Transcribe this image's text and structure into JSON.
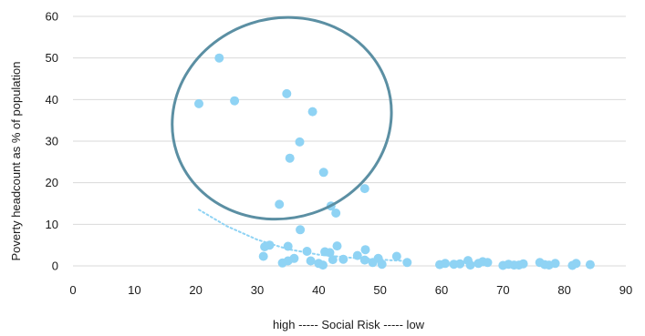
{
  "chart_data": {
    "type": "scatter",
    "title": "",
    "xlabel": "high ----- Social Risk ----- low",
    "ylabel": "Poverty headcount as % of population",
    "xlim": [
      0,
      90
    ],
    "ylim": [
      0,
      60
    ],
    "x_ticks": [
      "0",
      "10",
      "20",
      "30",
      "40",
      "50",
      "60",
      "70",
      "80",
      "90"
    ],
    "y_ticks": [
      "0",
      "10",
      "20",
      "30",
      "40",
      "50",
      "60"
    ],
    "grid": "horizontal",
    "legend": "none",
    "colors": {
      "points": "#8fd3f4",
      "ellipse": "#5b8fa3",
      "trendline": "#8fd3f4",
      "gridline": "#d9d9d9"
    },
    "trendline": {
      "style": "dotted",
      "points": [
        [
          20.5,
          13.5
        ],
        [
          25,
          9.6
        ],
        [
          30,
          6.3
        ],
        [
          35,
          4.0
        ],
        [
          40,
          2.7
        ],
        [
          45,
          2.0
        ],
        [
          50,
          1.5
        ],
        [
          55,
          1.1
        ]
      ]
    },
    "highlight": {
      "shape": "ellipse",
      "center": [
        34,
        35.5
      ],
      "rx": 18,
      "ry": 24,
      "rotation": -18
    },
    "points": [
      [
        23.8,
        50
      ],
      [
        20.5,
        39
      ],
      [
        26.3,
        39.7
      ],
      [
        34.8,
        41.4
      ],
      [
        39.0,
        37.1
      ],
      [
        36.9,
        29.8
      ],
      [
        35.3,
        25.9
      ],
      [
        40.8,
        22.5
      ],
      [
        47.5,
        18.6
      ],
      [
        33.6,
        14.8
      ],
      [
        42.0,
        14.4
      ],
      [
        42.8,
        12.7
      ],
      [
        37.0,
        8.7
      ],
      [
        32.0,
        5.0
      ],
      [
        31.2,
        4.6
      ],
      [
        35.0,
        4.7
      ],
      [
        31.0,
        2.3
      ],
      [
        38.1,
        3.5
      ],
      [
        41.0,
        3.4
      ],
      [
        41.8,
        3.2
      ],
      [
        43.0,
        4.8
      ],
      [
        47.6,
        3.9
      ],
      [
        46.3,
        2.5
      ],
      [
        52.7,
        2.3
      ],
      [
        36.0,
        1.8
      ],
      [
        35.0,
        1.2
      ],
      [
        34.1,
        0.7
      ],
      [
        38.7,
        1.2
      ],
      [
        40.0,
        0.6
      ],
      [
        40.7,
        0.2
      ],
      [
        42.3,
        1.5
      ],
      [
        44.0,
        1.6
      ],
      [
        47.5,
        1.4
      ],
      [
        48.8,
        0.8
      ],
      [
        49.7,
        1.8
      ],
      [
        50.3,
        0.4
      ],
      [
        54.4,
        0.8
      ],
      [
        59.7,
        0.3
      ],
      [
        60.6,
        0.6
      ],
      [
        62.0,
        0.4
      ],
      [
        63.0,
        0.5
      ],
      [
        64.3,
        1.3
      ],
      [
        64.7,
        0.2
      ],
      [
        66.0,
        0.6
      ],
      [
        66.7,
        1.0
      ],
      [
        67.5,
        0.8
      ],
      [
        70.0,
        0.1
      ],
      [
        70.9,
        0.4
      ],
      [
        71.8,
        0.2
      ],
      [
        72.6,
        0.2
      ],
      [
        73.3,
        0.5
      ],
      [
        76.0,
        0.8
      ],
      [
        76.8,
        0.3
      ],
      [
        77.5,
        0.2
      ],
      [
        78.5,
        0.6
      ],
      [
        81.3,
        0.1
      ],
      [
        81.9,
        0.6
      ],
      [
        84.2,
        0.3
      ]
    ]
  }
}
